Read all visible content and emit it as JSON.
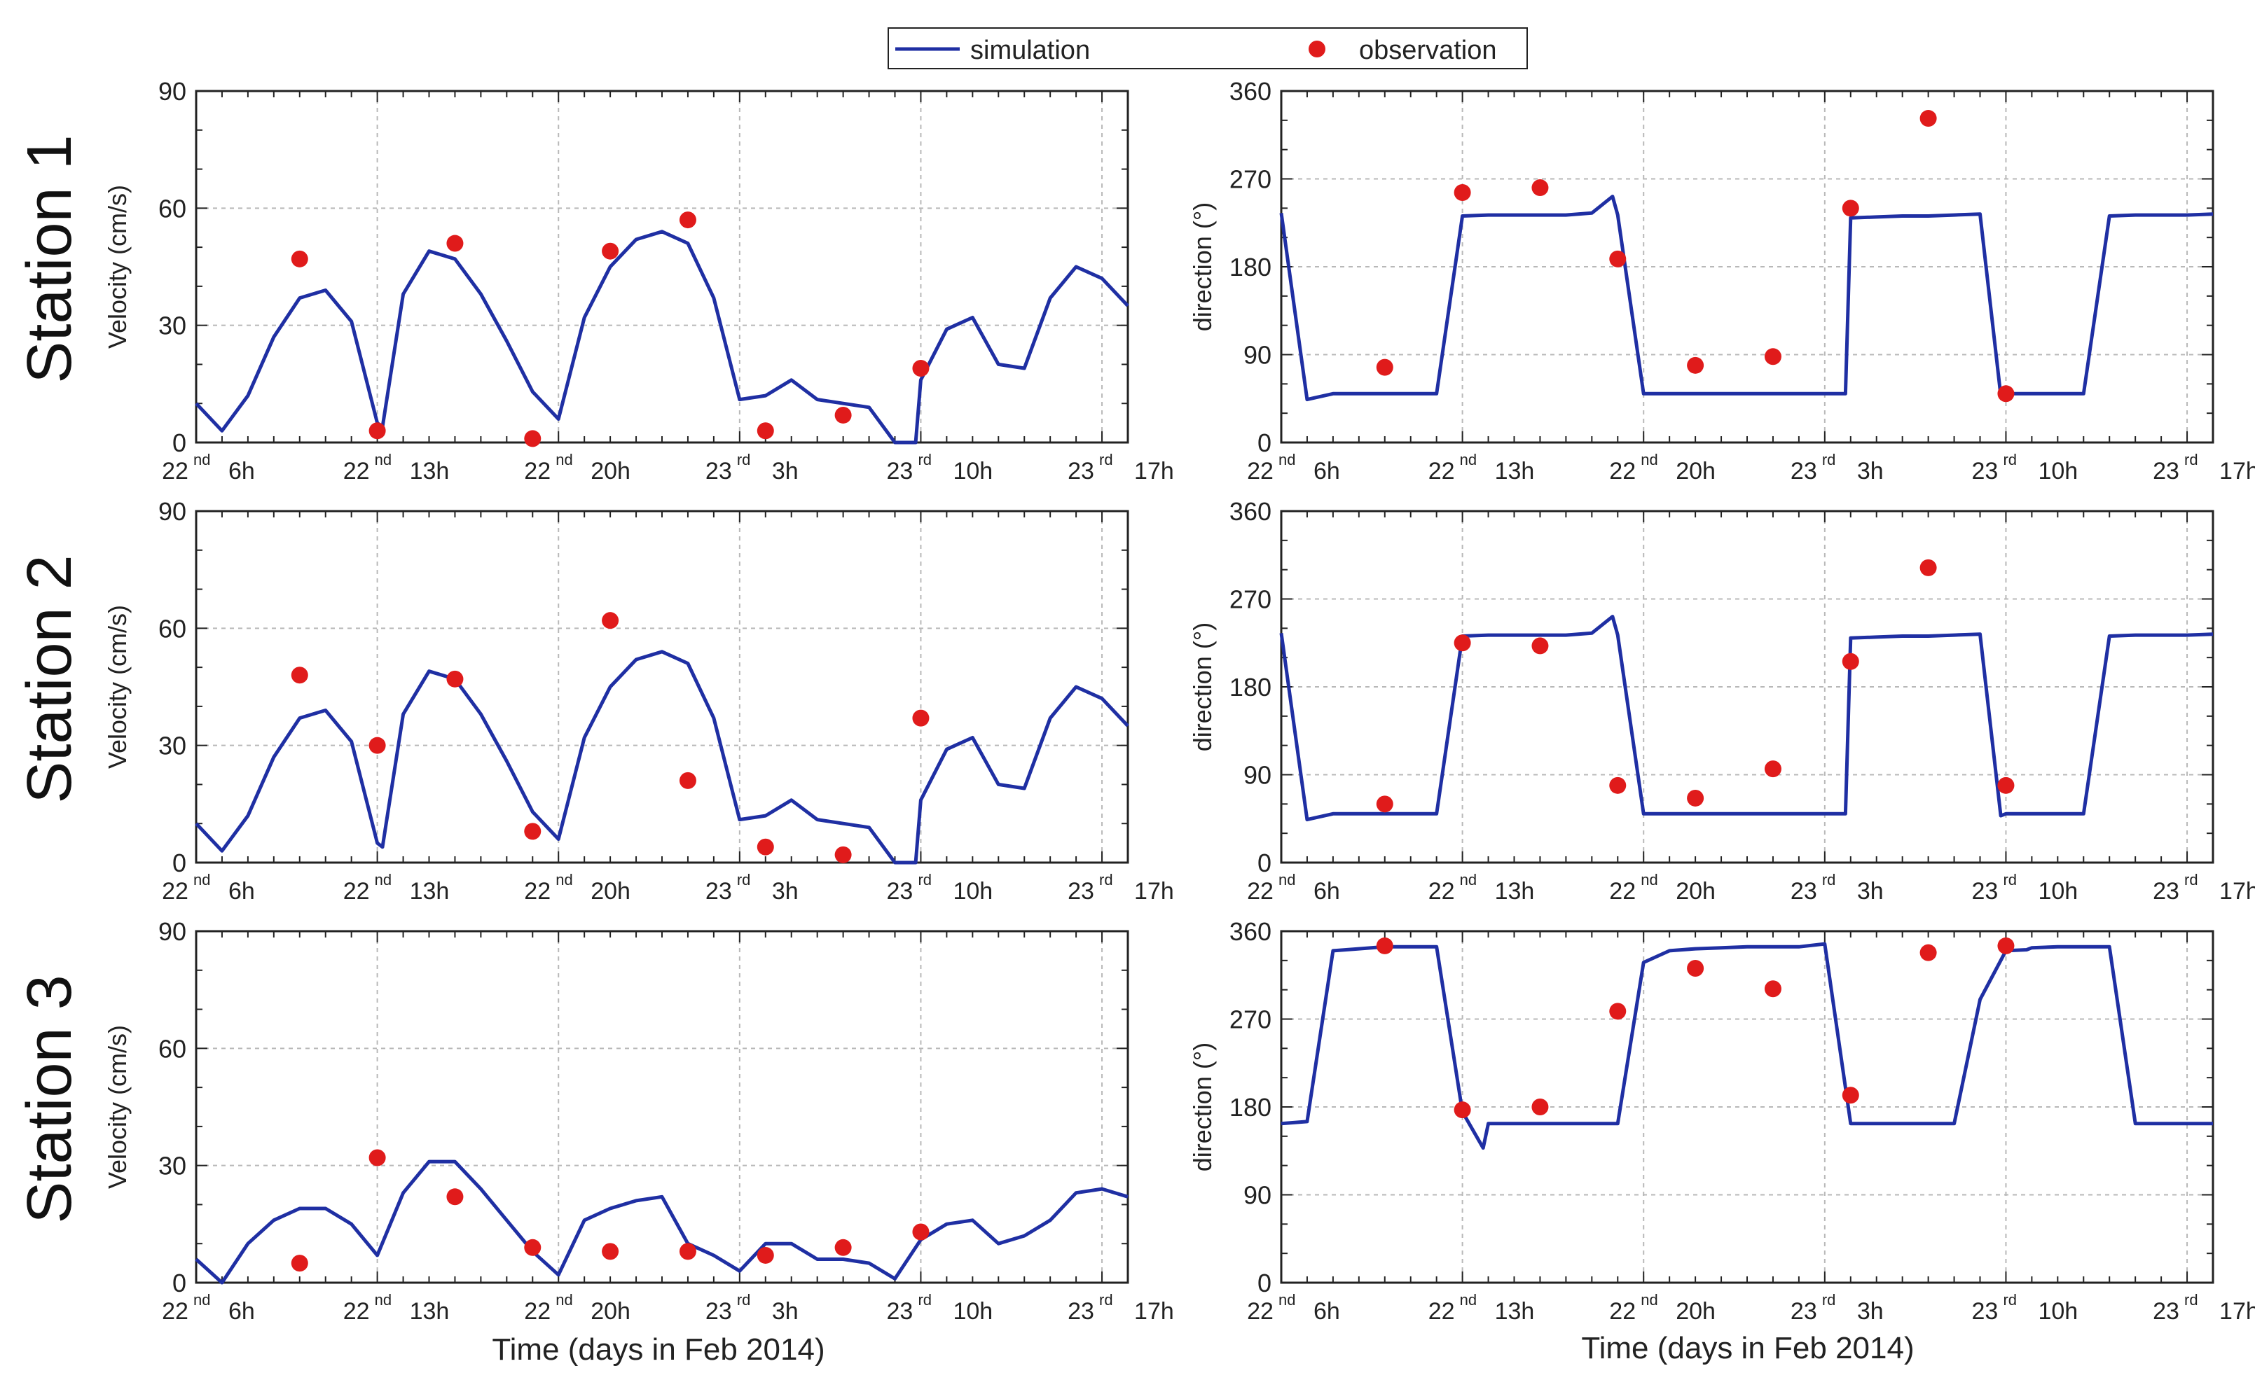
{
  "legend": {
    "simulation": "simulation",
    "observation": "observation"
  },
  "colors": {
    "simulation": "#1f2fa3",
    "observation": "#e01b1b",
    "grid": "#b8b8b8",
    "frame": "#222222"
  },
  "stations": [
    "Station 1",
    "Station 2",
    "Station 3"
  ],
  "xlabel": "Time (days in Feb 2014)",
  "x_tick_labels": [
    {
      "day": "22",
      "suf": "nd",
      "hour": "6h"
    },
    {
      "day": "22",
      "suf": "nd",
      "hour": "13h"
    },
    {
      "day": "22",
      "suf": "nd",
      "hour": "20h"
    },
    {
      "day": "23",
      "suf": "rd",
      "hour": "3h"
    },
    {
      "day": "23",
      "suf": "rd",
      "hour": "10h"
    },
    {
      "day": "23",
      "suf": "rd",
      "hour": "17h"
    }
  ],
  "chart_data": [
    {
      "type": "line",
      "station": "Station 1",
      "ylabel": "Velocity (cm/s)",
      "xlim": [
        0,
        36
      ],
      "ylim": [
        0,
        90
      ],
      "yticks": [
        0,
        30,
        60,
        90
      ],
      "grid": true,
      "series": [
        {
          "name": "simulation",
          "type": "line",
          "x": [
            0,
            1,
            2,
            3,
            4,
            5,
            6,
            7,
            7.2,
            8,
            9,
            10,
            11,
            12,
            13,
            14,
            15,
            16,
            17,
            18,
            19,
            20,
            21,
            22,
            23,
            24,
            25,
            26,
            27,
            27.8,
            28,
            29,
            30,
            31,
            32,
            33,
            34,
            35,
            36
          ],
          "y": [
            10,
            3,
            12,
            27,
            37,
            39,
            31,
            5,
            4,
            38,
            49,
            47,
            38,
            26,
            13,
            6,
            32,
            45,
            52,
            54,
            51,
            37,
            11,
            12,
            16,
            11,
            10,
            9,
            0,
            0,
            16,
            29,
            32,
            20,
            19,
            37,
            45,
            42,
            35
          ]
        },
        {
          "name": "observation",
          "type": "scatter",
          "x": [
            4,
            7,
            10,
            13,
            16,
            19,
            22,
            25,
            28
          ],
          "y": [
            47,
            3,
            51,
            1,
            49,
            57,
            3,
            7,
            19
          ]
        }
      ]
    },
    {
      "type": "line",
      "station": "Station 1",
      "ylabel": "direction (°)",
      "xlim": [
        0,
        36
      ],
      "ylim": [
        0,
        360
      ],
      "yticks": [
        0,
        90,
        180,
        270,
        360
      ],
      "grid": true,
      "series": [
        {
          "name": "simulation",
          "type": "line",
          "x": [
            0,
            1,
            2,
            3,
            4,
            5,
            6,
            7,
            8,
            9,
            10,
            11,
            12,
            12.8,
            13,
            14,
            15,
            16,
            17,
            18,
            19,
            20,
            21,
            21.8,
            22,
            23,
            24,
            25,
            26,
            27,
            27.8,
            28,
            29,
            30,
            31,
            32,
            33,
            34,
            35,
            36
          ],
          "y": [
            235,
            44,
            50,
            50,
            50,
            50,
            50,
            232,
            233,
            233,
            233,
            233,
            235,
            252,
            233,
            50,
            50,
            50,
            50,
            50,
            50,
            50,
            50,
            50,
            230,
            231,
            232,
            232,
            233,
            234,
            48,
            50,
            50,
            50,
            50,
            232,
            233,
            233,
            233,
            234
          ]
        },
        {
          "name": "observation",
          "type": "scatter",
          "x": [
            4,
            7,
            10,
            13,
            16,
            19,
            22,
            25,
            28
          ],
          "y": [
            77,
            256,
            261,
            188,
            79,
            88,
            240,
            332,
            50
          ]
        }
      ]
    },
    {
      "type": "line",
      "station": "Station 2",
      "ylabel": "Velocity (cm/s)",
      "xlim": [
        0,
        36
      ],
      "ylim": [
        0,
        90
      ],
      "yticks": [
        0,
        30,
        60,
        90
      ],
      "grid": true,
      "series": [
        {
          "name": "simulation",
          "type": "line",
          "x": [
            0,
            1,
            2,
            3,
            4,
            5,
            6,
            7,
            7.2,
            8,
            9,
            10,
            11,
            12,
            13,
            14,
            15,
            16,
            17,
            18,
            19,
            20,
            21,
            22,
            23,
            24,
            25,
            26,
            27,
            27.8,
            28,
            29,
            30,
            31,
            32,
            33,
            34,
            35,
            36
          ],
          "y": [
            10,
            3,
            12,
            27,
            37,
            39,
            31,
            5,
            4,
            38,
            49,
            47,
            38,
            26,
            13,
            6,
            32,
            45,
            52,
            54,
            51,
            37,
            11,
            12,
            16,
            11,
            10,
            9,
            0,
            0,
            16,
            29,
            32,
            20,
            19,
            37,
            45,
            42,
            35
          ]
        },
        {
          "name": "observation",
          "type": "scatter",
          "x": [
            4,
            7,
            10,
            13,
            16,
            19,
            22,
            25,
            28
          ],
          "y": [
            48,
            30,
            47,
            8,
            62,
            21,
            4,
            2,
            37
          ]
        }
      ]
    },
    {
      "type": "line",
      "station": "Station 2",
      "ylabel": "direction (°)",
      "xlim": [
        0,
        36
      ],
      "ylim": [
        0,
        360
      ],
      "yticks": [
        0,
        90,
        180,
        270,
        360
      ],
      "grid": true,
      "series": [
        {
          "name": "simulation",
          "type": "line",
          "x": [
            0,
            1,
            2,
            3,
            4,
            5,
            6,
            7,
            8,
            9,
            10,
            11,
            12,
            12.8,
            13,
            14,
            15,
            16,
            17,
            18,
            19,
            20,
            21,
            21.8,
            22,
            23,
            24,
            25,
            26,
            27,
            27.8,
            28,
            29,
            30,
            31,
            32,
            33,
            34,
            35,
            36
          ],
          "y": [
            235,
            44,
            50,
            50,
            50,
            50,
            50,
            232,
            233,
            233,
            233,
            233,
            235,
            252,
            233,
            50,
            50,
            50,
            50,
            50,
            50,
            50,
            50,
            50,
            230,
            231,
            232,
            232,
            233,
            234,
            48,
            50,
            50,
            50,
            50,
            232,
            233,
            233,
            233,
            234
          ]
        },
        {
          "name": "observation",
          "type": "scatter",
          "x": [
            4,
            7,
            10,
            13,
            16,
            19,
            22,
            25,
            28
          ],
          "y": [
            60,
            225,
            222,
            79,
            66,
            96,
            206,
            302,
            79
          ]
        }
      ]
    },
    {
      "type": "line",
      "station": "Station 3",
      "ylabel": "Velocity (cm/s)",
      "xlim": [
        0,
        36
      ],
      "ylim": [
        0,
        90
      ],
      "yticks": [
        0,
        30,
        60,
        90
      ],
      "grid": true,
      "series": [
        {
          "name": "simulation",
          "type": "line",
          "x": [
            0,
            1,
            2,
            3,
            4,
            5,
            6,
            7,
            8,
            9,
            10,
            11,
            12,
            13,
            14,
            15,
            16,
            17,
            18,
            19,
            20,
            21,
            22,
            23,
            24,
            25,
            26,
            27,
            28,
            29,
            30,
            31,
            32,
            33,
            34,
            35,
            36
          ],
          "y": [
            6,
            0,
            10,
            16,
            19,
            19,
            15,
            7,
            23,
            31,
            31,
            24,
            16,
            8,
            2,
            16,
            19,
            21,
            22,
            10,
            7,
            3,
            10,
            10,
            6,
            6,
            5,
            1,
            11,
            15,
            16,
            10,
            12,
            16,
            23,
            24,
            22
          ]
        },
        {
          "name": "observation",
          "type": "scatter",
          "x": [
            4,
            7,
            10,
            13,
            16,
            19,
            22,
            25,
            28
          ],
          "y": [
            5,
            32,
            22,
            9,
            8,
            8,
            7,
            9,
            13
          ]
        }
      ]
    },
    {
      "type": "line",
      "station": "Station 3",
      "ylabel": "direction (°)",
      "xlim": [
        0,
        36
      ],
      "ylim": [
        0,
        360
      ],
      "yticks": [
        0,
        90,
        180,
        270,
        360
      ],
      "grid": true,
      "series": [
        {
          "name": "simulation",
          "type": "line",
          "x": [
            0,
            1,
            2,
            3,
            4,
            5,
            6,
            7,
            7.8,
            8,
            9,
            10,
            11,
            12,
            13,
            14,
            15,
            16,
            17,
            18,
            19,
            20,
            21,
            22,
            23,
            24,
            25,
            26,
            27,
            28,
            28.8,
            29,
            30,
            31,
            32,
            33,
            34,
            35,
            36
          ],
          "y": [
            163,
            165,
            340,
            342,
            344,
            344,
            344,
            175,
            138,
            163,
            163,
            163,
            163,
            163,
            163,
            328,
            340,
            342,
            343,
            344,
            344,
            344,
            347,
            163,
            163,
            163,
            163,
            163,
            290,
            340,
            341,
            343,
            344,
            344,
            344,
            163,
            163,
            163,
            163
          ]
        },
        {
          "name": "observation",
          "type": "scatter",
          "x": [
            4,
            7,
            10,
            13,
            16,
            19,
            22,
            25,
            28
          ],
          "y": [
            345,
            177,
            180,
            278,
            322,
            301,
            192,
            338,
            345
          ]
        }
      ]
    }
  ]
}
